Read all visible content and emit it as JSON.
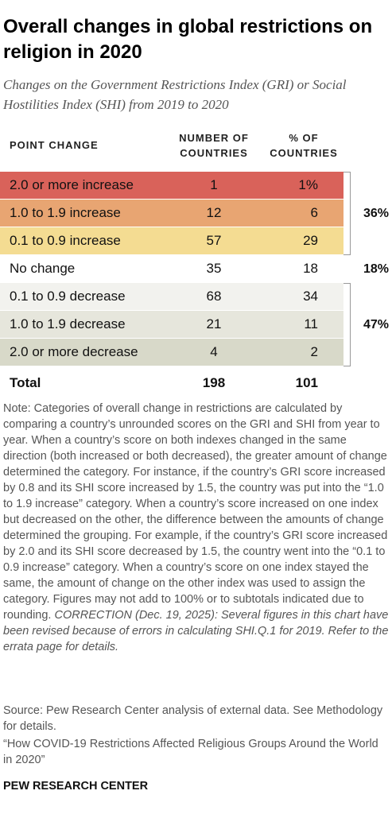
{
  "title": "Overall changes in global restrictions on religion in 2020",
  "subtitle": "Changes on the Government Restrictions Index (GRI) or Social Hostilities Index (SHI) from 2019 to 2020",
  "chart_data": {
    "type": "table",
    "columns": [
      "POINT CHANGE",
      "NUMBER OF COUNTRIES",
      "% OF COUNTRIES"
    ],
    "rows": [
      {
        "category": "2.0 or more increase",
        "countries": "1",
        "percent": "1%",
        "color": "#d9625a"
      },
      {
        "category": "1.0 to 1.9 increase",
        "countries": "12",
        "percent": "6",
        "color": "#e8a572"
      },
      {
        "category": "0.1 to 0.9 increase",
        "countries": "57",
        "percent": "29",
        "color": "#f4dc92"
      },
      {
        "category": "No change",
        "countries": "35",
        "percent": "18",
        "color": "#ffffff"
      },
      {
        "category": "0.1 to 0.9 decrease",
        "countries": "68",
        "percent": "34",
        "color": "#f2f2ee"
      },
      {
        "category": "1.0 to 1.9 decrease",
        "countries": "21",
        "percent": "11",
        "color": "#e6e6dc"
      },
      {
        "category": "2.0 or more decrease",
        "countries": "4",
        "percent": "2",
        "color": "#d8d9c9"
      }
    ],
    "total": {
      "category": "Total",
      "countries": "198",
      "percent": "101"
    },
    "groups": [
      {
        "label": "36%",
        "from_row": 0,
        "to_row": 2
      },
      {
        "label": "18%",
        "from_row": 3,
        "to_row": 3
      },
      {
        "label": "47%",
        "from_row": 4,
        "to_row": 6
      }
    ]
  },
  "note": "Note: Categories of overall change in restrictions are calculated by comparing a country’s unrounded scores on the GRI and SHI from year to year. When a country’s score on both indexes changed in the same direction (both increased or both decreased), the greater amount of change determined the category. For instance, if the country’s GRI score increased by 0.8 and its SHI score increased by 1.5, the country was put into the “1.0 to 1.9 increase” category. When a country’s score increased on one index but decreased on the other, the difference between the amounts of change determined the grouping. For example, if the country’s GRI score increased by 2.0 and its SHI score decreased by 1.5, the country went into the “0.1 to 0.9 increase” category. When a country’s score on one index stayed the same, the amount of change on the other index was used to assign the category. Figures may not add to 100% or to subtotals indicated due to rounding.",
  "correction": "CORRECTION (Dec. 19, 2025): Several figures in this chart have been revised because of errors in calculating SHI.Q.1 for 2019. Refer to the errata page for details.",
  "source": "Source: Pew Research Center analysis of external data. See Methodology for details.",
  "report_title": "“How COVID-19 Restrictions Affected Religious Groups Around the World in 2020”",
  "brand": "PEW RESEARCH CENTER"
}
